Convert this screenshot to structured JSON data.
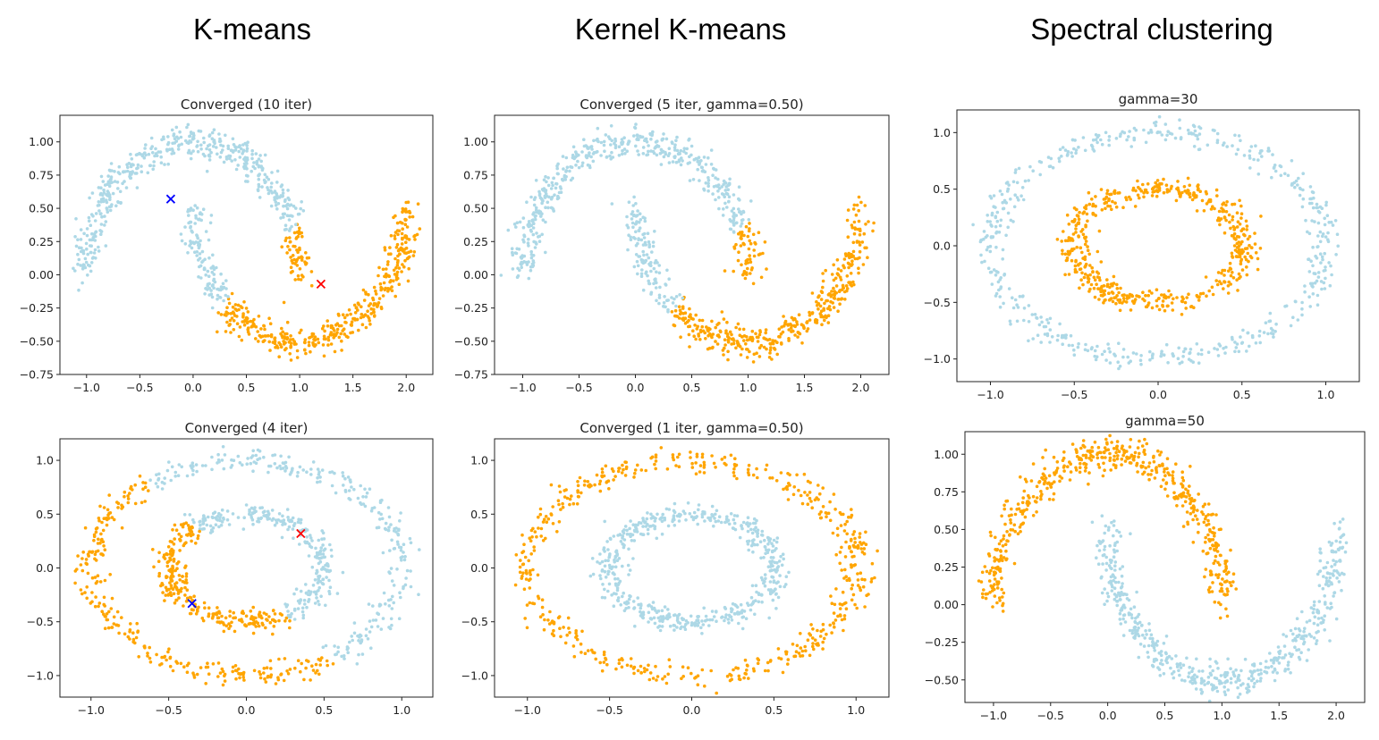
{
  "column_titles": [
    "K-means",
    "Kernel K-means",
    "Spectral clustering"
  ],
  "colors": {
    "cluster_a": "#add8e6",
    "cluster_b": "#ffa500",
    "centroid_a": "#0000ff",
    "centroid_b": "#ff0000"
  },
  "chart_data": [
    {
      "id": "kmeans-moons",
      "type": "scatter",
      "title": "Converged (10 iter)",
      "dataset": "moons",
      "xlim": [
        -1.25,
        2.25
      ],
      "ylim": [
        -0.75,
        1.2
      ],
      "xticks": [
        -1.0,
        -0.5,
        0.0,
        0.5,
        1.0,
        1.5,
        2.0
      ],
      "yticks": [
        -0.75,
        -0.5,
        -0.25,
        0.0,
        0.25,
        0.5,
        0.75,
        1.0
      ],
      "xtick_labels": [
        "−1.0",
        "−0.5",
        "0.0",
        "0.5",
        "1.0",
        "1.5",
        "2.0"
      ],
      "ytick_labels": [
        "−0.75",
        "−0.50",
        "−0.25",
        "0.00",
        "0.25",
        "0.50",
        "0.75",
        "1.00"
      ],
      "assignment": "linear",
      "line": [
        0.87,
        -1.0,
        -0.46
      ],
      "centroids": [
        {
          "x": -0.21,
          "y": 0.57,
          "cluster": "a"
        },
        {
          "x": 1.2,
          "y": -0.07,
          "cluster": "b"
        }
      ]
    },
    {
      "id": "kernel-moons",
      "type": "scatter",
      "title": "Converged (5 iter, gamma=0.50)",
      "dataset": "moons",
      "xlim": [
        -1.25,
        2.25
      ],
      "ylim": [
        -0.75,
        1.2
      ],
      "xticks": [
        -1.0,
        -0.5,
        0.0,
        0.5,
        1.0,
        1.5,
        2.0
      ],
      "yticks": [
        -0.75,
        -0.5,
        -0.25,
        0.0,
        0.25,
        0.5,
        0.75,
        1.0
      ],
      "xtick_labels": [
        "−1.0",
        "−0.5",
        "0.0",
        "0.5",
        "1.0",
        "1.5",
        "2.0"
      ],
      "ytick_labels": [
        "−0.75",
        "−0.50",
        "−0.25",
        "0.00",
        "0.25",
        "0.50",
        "0.75",
        "1.00"
      ],
      "assignment": "linear",
      "line": [
        1.0,
        -1.0,
        -0.6
      ]
    },
    {
      "id": "spectral-circles",
      "type": "scatter",
      "title": "gamma=30",
      "dataset": "circles",
      "xlim": [
        -1.2,
        1.2
      ],
      "ylim": [
        -1.2,
        1.2
      ],
      "xticks": [
        -1.0,
        -0.5,
        0.0,
        0.5,
        1.0
      ],
      "yticks": [
        -1.0,
        -0.5,
        0.0,
        0.5,
        1.0
      ],
      "xtick_labels": [
        "−1.0",
        "−0.5",
        "0.0",
        "0.5",
        "1.0"
      ],
      "ytick_labels": [
        "−1.0",
        "−0.5",
        "0.0",
        "0.5",
        "1.0"
      ],
      "assignment": "ring",
      "outer": "a",
      "inner": "b"
    },
    {
      "id": "kmeans-circles",
      "type": "scatter",
      "title": "Converged (4 iter)",
      "dataset": "circles",
      "xlim": [
        -1.2,
        1.2
      ],
      "ylim": [
        -1.2,
        1.2
      ],
      "xticks": [
        -1.0,
        -0.5,
        0.0,
        0.5,
        1.0
      ],
      "yticks": [
        -1.0,
        -0.5,
        0.0,
        0.5,
        1.0
      ],
      "xtick_labels": [
        "−1.0",
        "−0.5",
        "0.0",
        "0.5",
        "1.0"
      ],
      "ytick_labels": [
        "−1.0",
        "−0.5",
        "0.0",
        "0.5",
        "1.0"
      ],
      "assignment": "linear",
      "line": [
        -1.0,
        -0.7,
        -0.05
      ],
      "centroids": [
        {
          "x": -0.35,
          "y": -0.33,
          "cluster": "a"
        },
        {
          "x": 0.35,
          "y": 0.32,
          "cluster": "b"
        }
      ]
    },
    {
      "id": "kernel-circles",
      "type": "scatter",
      "title": "Converged (1 iter, gamma=0.50)",
      "dataset": "circles",
      "xlim": [
        -1.2,
        1.2
      ],
      "ylim": [
        -1.2,
        1.2
      ],
      "xticks": [
        -1.0,
        -0.5,
        0.0,
        0.5,
        1.0
      ],
      "yticks": [
        -1.0,
        -0.5,
        0.0,
        0.5,
        1.0
      ],
      "xtick_labels": [
        "−1.0",
        "−0.5",
        "0.0",
        "0.5",
        "1.0"
      ],
      "ytick_labels": [
        "−1.0",
        "−0.5",
        "0.0",
        "0.5",
        "1.0"
      ],
      "assignment": "ring",
      "outer": "b",
      "inner": "a"
    },
    {
      "id": "spectral-moons",
      "type": "scatter",
      "title": "gamma=50",
      "dataset": "moons",
      "xlim": [
        -1.25,
        2.25
      ],
      "ylim": [
        -0.65,
        1.15
      ],
      "xticks": [
        -1.0,
        -0.5,
        0.0,
        0.5,
        1.0,
        1.5,
        2.0
      ],
      "yticks": [
        -0.5,
        -0.25,
        0.0,
        0.25,
        0.5,
        0.75,
        1.0
      ],
      "xtick_labels": [
        "−1.0",
        "−0.5",
        "0.0",
        "0.5",
        "1.0",
        "1.5",
        "2.0"
      ],
      "ytick_labels": [
        "−0.50",
        "−0.25",
        "0.00",
        "0.25",
        "0.50",
        "0.75",
        "1.00"
      ],
      "assignment": "moon",
      "upper": "b",
      "lower": "a"
    }
  ]
}
